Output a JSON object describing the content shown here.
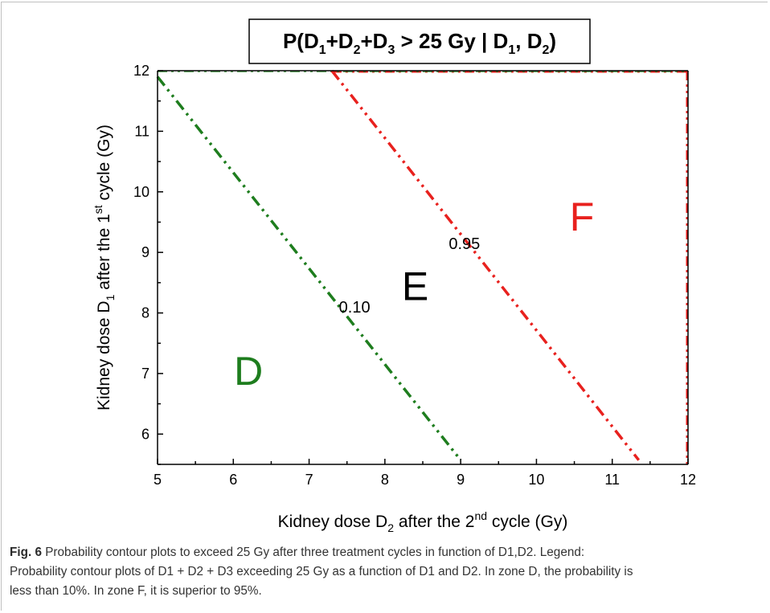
{
  "chart_data": {
    "type": "line",
    "title": {
      "prefix": "P(D",
      "s1": "1",
      "p2": "+D",
      "s2": "2",
      "p3": "+D",
      "s3": "3",
      "mid": " > 25 Gy | D",
      "s4": "1",
      "p5": ", D",
      "s5": "2",
      "suffix": ")"
    },
    "xlabel": {
      "a": "Kidney dose D",
      "sub": "2",
      "b": " after the 2",
      "sup": "nd",
      "c": " cycle (Gy)"
    },
    "ylabel": {
      "a": "Kidney dose D",
      "sub": "1",
      "b": " after the 1",
      "sup": "st",
      "c": " cycle (Gy)"
    },
    "xlim": [
      5,
      12
    ],
    "ylim": [
      5.5,
      12
    ],
    "x_ticks": [
      5,
      6,
      7,
      8,
      9,
      10,
      11,
      12
    ],
    "y_ticks": [
      6,
      7,
      8,
      9,
      10,
      11,
      12
    ],
    "grid": false,
    "series": [
      {
        "name": "0.10",
        "color": "#1e7d1e",
        "x": [
          5.0,
          9.0
        ],
        "y": [
          11.9,
          5.57
        ]
      },
      {
        "name": "0.95",
        "color": "#e8211e",
        "x": [
          7.3,
          11.35
        ],
        "y": [
          12.0,
          5.57
        ]
      }
    ],
    "contour_labels": [
      {
        "text": "0.10",
        "x": 7.6,
        "y": 8.1
      },
      {
        "text": "0.95",
        "x": 9.05,
        "y": 9.15
      }
    ],
    "zones": [
      {
        "text": "D",
        "x": 6.2,
        "y": 7.05,
        "color": "#1e7d1e"
      },
      {
        "text": "E",
        "x": 8.4,
        "y": 8.45,
        "color": "#000000"
      },
      {
        "text": "F",
        "x": 10.6,
        "y": 9.6,
        "color": "#e8211e"
      }
    ]
  },
  "caption": {
    "label": "Fig. 6",
    "line1": " Probability contour plots to exceed 25 Gy after three treatment cycles in function of D1,D2. Legend:",
    "line2": "Probability contour plots of D1 + D2 + D3 exceeding 25 Gy as a function of D1 and D2. In zone D, the probability is",
    "line3": "less than 10%. In zone F, it is superior to 95%."
  }
}
